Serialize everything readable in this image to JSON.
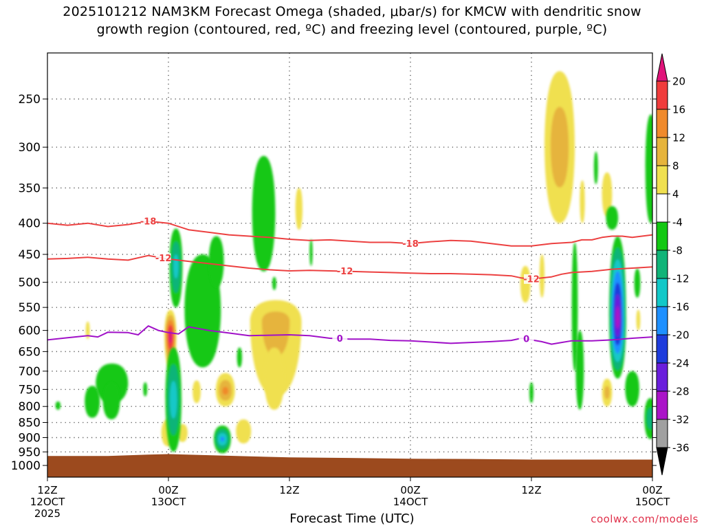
{
  "title_line1": "2025101212 NAM3KM Forecast Omega (shaded, μbar/s) for KMCW with dendritic snow",
  "title_line2": "growth region (contoured, red, ºC) and freezing level (contoured, purple, ºC)",
  "xlabel": "Forecast Time (UTC)",
  "credit": "coolwx.com/models",
  "chart_data": {
    "type": "heatmap",
    "title": "2025101212 NAM3KM Forecast Omega (shaded, μbar/s) for KMCW with dendritic snow growth region (contoured, red, ºC) and freezing level (contoured, purple, ºC)",
    "xlabel": "Forecast Time (UTC)",
    "ylabel": "",
    "x_unit": "forecast hour",
    "xlim": [
      0,
      60
    ],
    "ylim": [
      1040,
      200
    ],
    "y_scale": "pressure (inverted)",
    "grid": true,
    "y_ticks": [
      250,
      300,
      350,
      400,
      450,
      500,
      550,
      600,
      650,
      700,
      750,
      800,
      850,
      900,
      950,
      1000
    ],
    "x_ticks": [
      {
        "x": 0,
        "lines": [
          "12Z",
          "12OCT",
          "2025"
        ]
      },
      {
        "x": 12,
        "lines": [
          "00Z",
          "13OCT"
        ]
      },
      {
        "x": 24,
        "lines": [
          "12Z"
        ]
      },
      {
        "x": 36,
        "lines": [
          "00Z",
          "14OCT"
        ]
      },
      {
        "x": 48,
        "lines": [
          "12Z"
        ]
      },
      {
        "x": 60,
        "lines": [
          "00Z",
          "15OCT"
        ]
      }
    ],
    "colorbar": {
      "unit": "μbar/s",
      "labels": [
        "20",
        "16",
        "12",
        "8",
        "4",
        "-4",
        "-8",
        "-12",
        "-16",
        "-20",
        "-24",
        "-28",
        "-32",
        "-36"
      ],
      "bins": [
        {
          "color": "#e0147a"
        },
        {
          "color": "#f03c3c"
        },
        {
          "color": "#f08a2c"
        },
        {
          "color": "#e6b43c"
        },
        {
          "color": "#f0e050"
        },
        {
          "color": "#ffffff"
        },
        {
          "color": "#12c812"
        },
        {
          "color": "#10b478"
        },
        {
          "color": "#12c8c8"
        },
        {
          "color": "#1e90ff"
        },
        {
          "color": "#1e3cdc"
        },
        {
          "color": "#6a1edc"
        },
        {
          "color": "#aa14c8"
        },
        {
          "color": "#a0a0a0"
        },
        {
          "color": "#000000"
        }
      ]
    },
    "contours": [
      {
        "label": "-18",
        "color": "#ec4040",
        "points": [
          [
            0,
            400
          ],
          [
            2,
            403
          ],
          [
            4,
            400
          ],
          [
            6,
            405
          ],
          [
            8,
            402
          ],
          [
            10,
            397
          ],
          [
            12,
            400
          ],
          [
            14,
            410
          ],
          [
            16,
            414
          ],
          [
            18,
            418
          ],
          [
            20,
            420
          ],
          [
            22,
            422
          ],
          [
            24,
            425
          ],
          [
            26,
            427
          ],
          [
            28,
            426
          ],
          [
            30,
            428
          ],
          [
            32,
            430
          ],
          [
            34,
            430
          ],
          [
            36,
            432
          ],
          [
            38,
            429
          ],
          [
            40,
            427
          ],
          [
            42,
            428
          ],
          [
            44,
            432
          ],
          [
            46,
            436
          ],
          [
            48,
            436
          ],
          [
            50,
            432
          ],
          [
            52,
            430
          ],
          [
            53,
            426
          ],
          [
            54,
            426
          ],
          [
            55,
            422
          ],
          [
            56,
            420
          ],
          [
            57,
            420
          ],
          [
            58,
            422
          ],
          [
            60,
            418
          ]
        ],
        "labels_at": [
          10,
          36
        ]
      },
      {
        "label": "-12",
        "color": "#ec4040",
        "points": [
          [
            0,
            458
          ],
          [
            2,
            457
          ],
          [
            4,
            455
          ],
          [
            6,
            458
          ],
          [
            8,
            460
          ],
          [
            10,
            452
          ],
          [
            12,
            458
          ],
          [
            14,
            462
          ],
          [
            16,
            466
          ],
          [
            18,
            470
          ],
          [
            20,
            474
          ],
          [
            22,
            477
          ],
          [
            24,
            479
          ],
          [
            26,
            478
          ],
          [
            28,
            479
          ],
          [
            30,
            480
          ],
          [
            32,
            481
          ],
          [
            34,
            482
          ],
          [
            36,
            483
          ],
          [
            38,
            484
          ],
          [
            40,
            484
          ],
          [
            42,
            485
          ],
          [
            44,
            486
          ],
          [
            46,
            488
          ],
          [
            47,
            492
          ],
          [
            48,
            494
          ],
          [
            50,
            490
          ],
          [
            51,
            485
          ],
          [
            52,
            482
          ],
          [
            54,
            480
          ],
          [
            56,
            476
          ],
          [
            58,
            474
          ],
          [
            60,
            472
          ]
        ],
        "labels_at": [
          11.5,
          29.5,
          48
        ]
      },
      {
        "label": "0",
        "color": "#a010c8",
        "points": [
          [
            0,
            622
          ],
          [
            2,
            617
          ],
          [
            4,
            612
          ],
          [
            5,
            615
          ],
          [
            6,
            604
          ],
          [
            8,
            605
          ],
          [
            9,
            610
          ],
          [
            10,
            590
          ],
          [
            11,
            600
          ],
          [
            12,
            605
          ],
          [
            13,
            608
          ],
          [
            14,
            592
          ],
          [
            16,
            600
          ],
          [
            18,
            606
          ],
          [
            20,
            612
          ],
          [
            22,
            611
          ],
          [
            24,
            610
          ],
          [
            26,
            612
          ],
          [
            28,
            618
          ],
          [
            30,
            620
          ],
          [
            32,
            620
          ],
          [
            34,
            623
          ],
          [
            36,
            624
          ],
          [
            38,
            627
          ],
          [
            40,
            630
          ],
          [
            42,
            628
          ],
          [
            44,
            626
          ],
          [
            46,
            623
          ],
          [
            47,
            618
          ],
          [
            48,
            622
          ],
          [
            49,
            626
          ],
          [
            50,
            632
          ],
          [
            51,
            628
          ],
          [
            52,
            624
          ],
          [
            54,
            624
          ],
          [
            56,
            622
          ],
          [
            58,
            618
          ],
          [
            60,
            615
          ]
        ],
        "labels_at": [
          29,
          47.5
        ]
      }
    ],
    "omega_features": [
      {
        "kind": "up",
        "x": [
          11.6,
          12.8
        ],
        "p": [
          555,
          695
        ],
        "peak_p": 612,
        "peak": 22
      },
      {
        "kind": "up",
        "x": [
          16.7,
          18.6
        ],
        "p": [
          705,
          800
        ],
        "peak_p": 755,
        "peak": 12
      },
      {
        "kind": "up",
        "x": [
          14.4,
          15.2
        ],
        "p": [
          725,
          790
        ],
        "peak": 6
      },
      {
        "kind": "up",
        "x": [
          20.1,
          25.2
        ],
        "p": [
          535,
          770
        ],
        "peak_p": 580,
        "peak": 9
      },
      {
        "kind": "up",
        "x": [
          21.5,
          23.5
        ],
        "p": [
          640,
          810
        ],
        "peak": 5
      },
      {
        "kind": "up",
        "x": [
          18.7,
          20.2
        ],
        "p": [
          840,
          920
        ],
        "peak": 6
      },
      {
        "kind": "up",
        "x": [
          11.3,
          12.6
        ],
        "p": [
          840,
          930
        ],
        "peak": 5
      },
      {
        "kind": "up",
        "x": [
          12.9,
          13.9
        ],
        "p": [
          855,
          915
        ],
        "peak": 5
      },
      {
        "kind": "up",
        "x": [
          3.8,
          4.2
        ],
        "p": [
          580,
          620
        ],
        "peak": 5
      },
      {
        "kind": "up",
        "x": [
          24.6,
          25.3
        ],
        "p": [
          350,
          410
        ],
        "peak": 5
      },
      {
        "kind": "up",
        "x": [
          49.3,
          52.3
        ],
        "p": [
          225,
          400
        ],
        "peak_p": 300,
        "peak": 10
      },
      {
        "kind": "up",
        "x": [
          46.9,
          47.9
        ],
        "p": [
          470,
          540
        ],
        "peak": 6
      },
      {
        "kind": "up",
        "x": [
          48.8,
          49.3
        ],
        "p": [
          450,
          530
        ],
        "peak": 5
      },
      {
        "kind": "up",
        "x": [
          52.8,
          53.3
        ],
        "p": [
          340,
          400
        ],
        "peak": 5
      },
      {
        "kind": "up",
        "x": [
          55.0,
          56.0
        ],
        "p": [
          330,
          390
        ],
        "peak": 5
      },
      {
        "kind": "up",
        "x": [
          55.0,
          56.0
        ],
        "p": [
          720,
          800
        ],
        "peak": 9
      },
      {
        "kind": "up",
        "x": [
          58.4,
          58.8
        ],
        "p": [
          555,
          600
        ],
        "peak": 5
      },
      {
        "kind": "down",
        "x": [
          12.1,
          13.4
        ],
        "p": [
          408,
          550
        ],
        "peak_p": 470,
        "peak": -13
      },
      {
        "kind": "down",
        "x": [
          13.6,
          17.2
        ],
        "p": [
          450,
          690
        ],
        "peak": -6
      },
      {
        "kind": "down",
        "x": [
          16.0,
          17.5
        ],
        "p": [
          420,
          510
        ],
        "peak": -5
      },
      {
        "kind": "down",
        "x": [
          20.3,
          22.6
        ],
        "p": [
          310,
          480
        ],
        "peak": -6
      },
      {
        "kind": "down",
        "x": [
          11.7,
          13.3
        ],
        "p": [
          640,
          950
        ],
        "peak_p": 780,
        "peak": -14
      },
      {
        "kind": "down",
        "x": [
          16.5,
          18.2
        ],
        "p": [
          860,
          955
        ],
        "peak_p": 905,
        "peak": -16
      },
      {
        "kind": "down",
        "x": [
          4.8,
          8.0
        ],
        "p": [
          680,
          790
        ],
        "peak": -6
      },
      {
        "kind": "down",
        "x": [
          3.7,
          5.2
        ],
        "p": [
          740,
          835
        ],
        "peak": -6
      },
      {
        "kind": "down",
        "x": [
          5.5,
          7.2
        ],
        "p": [
          730,
          840
        ],
        "peak": -5
      },
      {
        "kind": "down",
        "x": [
          0.8,
          1.3
        ],
        "p": [
          785,
          810
        ],
        "peak": -5
      },
      {
        "kind": "down",
        "x": [
          55.7,
          57.4
        ],
        "p": [
          420,
          720
        ],
        "peak_p": 575,
        "peak": -30
      },
      {
        "kind": "down",
        "x": [
          52.0,
          52.6
        ],
        "p": [
          430,
          700
        ],
        "peak": -5
      },
      {
        "kind": "down",
        "x": [
          57.3,
          58.7
        ],
        "p": [
          700,
          800
        ],
        "peak": -6
      },
      {
        "kind": "down",
        "x": [
          59.2,
          60.4
        ],
        "p": [
          775,
          905
        ],
        "peak": -10
      },
      {
        "kind": "down",
        "x": [
          59.3,
          60.4
        ],
        "p": [
          265,
          400
        ],
        "peak": -6
      },
      {
        "kind": "down",
        "x": [
          55.4,
          56.6
        ],
        "p": [
          375,
          410
        ],
        "peak": -5
      },
      {
        "kind": "down",
        "x": [
          54.2,
          54.6
        ],
        "p": [
          305,
          345
        ],
        "peak": -5
      },
      {
        "kind": "down",
        "x": [
          52.4,
          53.2
        ],
        "p": [
          600,
          810
        ],
        "peak": -6
      },
      {
        "kind": "down",
        "x": [
          58.2,
          58.8
        ],
        "p": [
          475,
          530
        ],
        "peak": -6
      },
      {
        "kind": "down",
        "x": [
          47.8,
          48.2
        ],
        "p": [
          730,
          790
        ],
        "peak": -5
      },
      {
        "kind": "down",
        "x": [
          18.8,
          19.3
        ],
        "p": [
          640,
          690
        ],
        "peak": -5
      },
      {
        "kind": "down",
        "x": [
          9.5,
          9.9
        ],
        "p": [
          730,
          770
        ],
        "peak": -5
      },
      {
        "kind": "down",
        "x": [
          22.3,
          22.7
        ],
        "p": [
          490,
          515
        ],
        "peak": -4
      },
      {
        "kind": "down",
        "x": [
          26.0,
          26.3
        ],
        "p": [
          425,
          470
        ],
        "peak": -4
      }
    ],
    "surface": {
      "color": "#9c4a1e",
      "points": [
        [
          0,
          965
        ],
        [
          6,
          965
        ],
        [
          10,
          960
        ],
        [
          12,
          958
        ],
        [
          16,
          962
        ],
        [
          20,
          966
        ],
        [
          24,
          970
        ],
        [
          30,
          972
        ],
        [
          36,
          975
        ],
        [
          42,
          976
        ],
        [
          48,
          978
        ],
        [
          54,
          978
        ],
        [
          60,
          978
        ]
      ]
    }
  }
}
